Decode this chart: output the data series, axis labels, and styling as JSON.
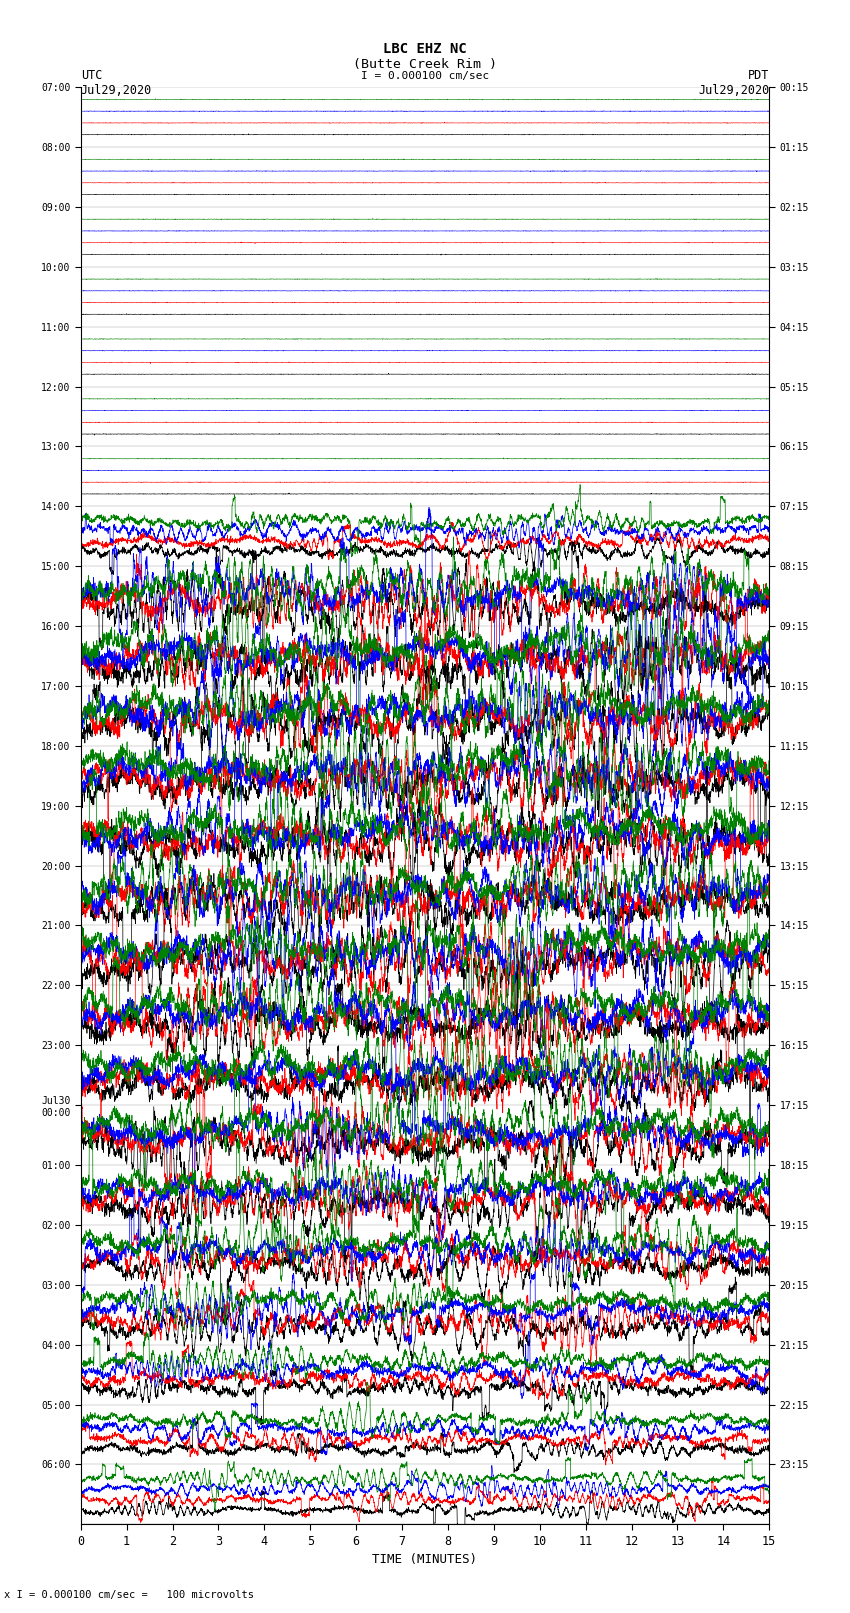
{
  "title_line1": "LBC EHZ NC",
  "title_line2": "(Butte Creek Rim )",
  "scale_label": "I = 0.000100 cm/sec",
  "utc_label": "UTC",
  "pdt_label": "PDT",
  "date_left": "Jul29,2020",
  "date_right": "Jul29,2020",
  "xlabel": "TIME (MINUTES)",
  "bottom_label": "x I = 0.000100 cm/sec =   100 microvolts",
  "left_times": [
    "07:00",
    "08:00",
    "09:00",
    "10:00",
    "11:00",
    "12:00",
    "13:00",
    "14:00",
    "15:00",
    "16:00",
    "17:00",
    "18:00",
    "19:00",
    "20:00",
    "21:00",
    "22:00",
    "23:00",
    "Jul30\n00:00",
    "01:00",
    "02:00",
    "03:00",
    "04:00",
    "05:00",
    "06:00"
  ],
  "right_times": [
    "00:15",
    "01:15",
    "02:15",
    "03:15",
    "04:15",
    "05:15",
    "06:15",
    "07:15",
    "08:15",
    "09:15",
    "10:15",
    "11:15",
    "12:15",
    "13:15",
    "14:15",
    "15:15",
    "16:15",
    "17:15",
    "18:15",
    "19:15",
    "20:15",
    "21:15",
    "22:15",
    "23:15"
  ],
  "num_rows": 24,
  "minutes_per_row": 15,
  "xlim": [
    0,
    15
  ],
  "bg_color": "white",
  "trace_colors": [
    "black",
    "red",
    "blue",
    "green"
  ],
  "figsize": [
    8.5,
    16.13
  ],
  "dpi": 100,
  "row_amplitudes": [
    0.04,
    0.04,
    0.04,
    0.04,
    0.04,
    0.04,
    0.04,
    0.35,
    0.85,
    1.0,
    1.0,
    1.0,
    1.0,
    1.0,
    1.0,
    0.95,
    0.9,
    0.85,
    0.75,
    0.65,
    0.55,
    0.45,
    0.35,
    0.25
  ]
}
